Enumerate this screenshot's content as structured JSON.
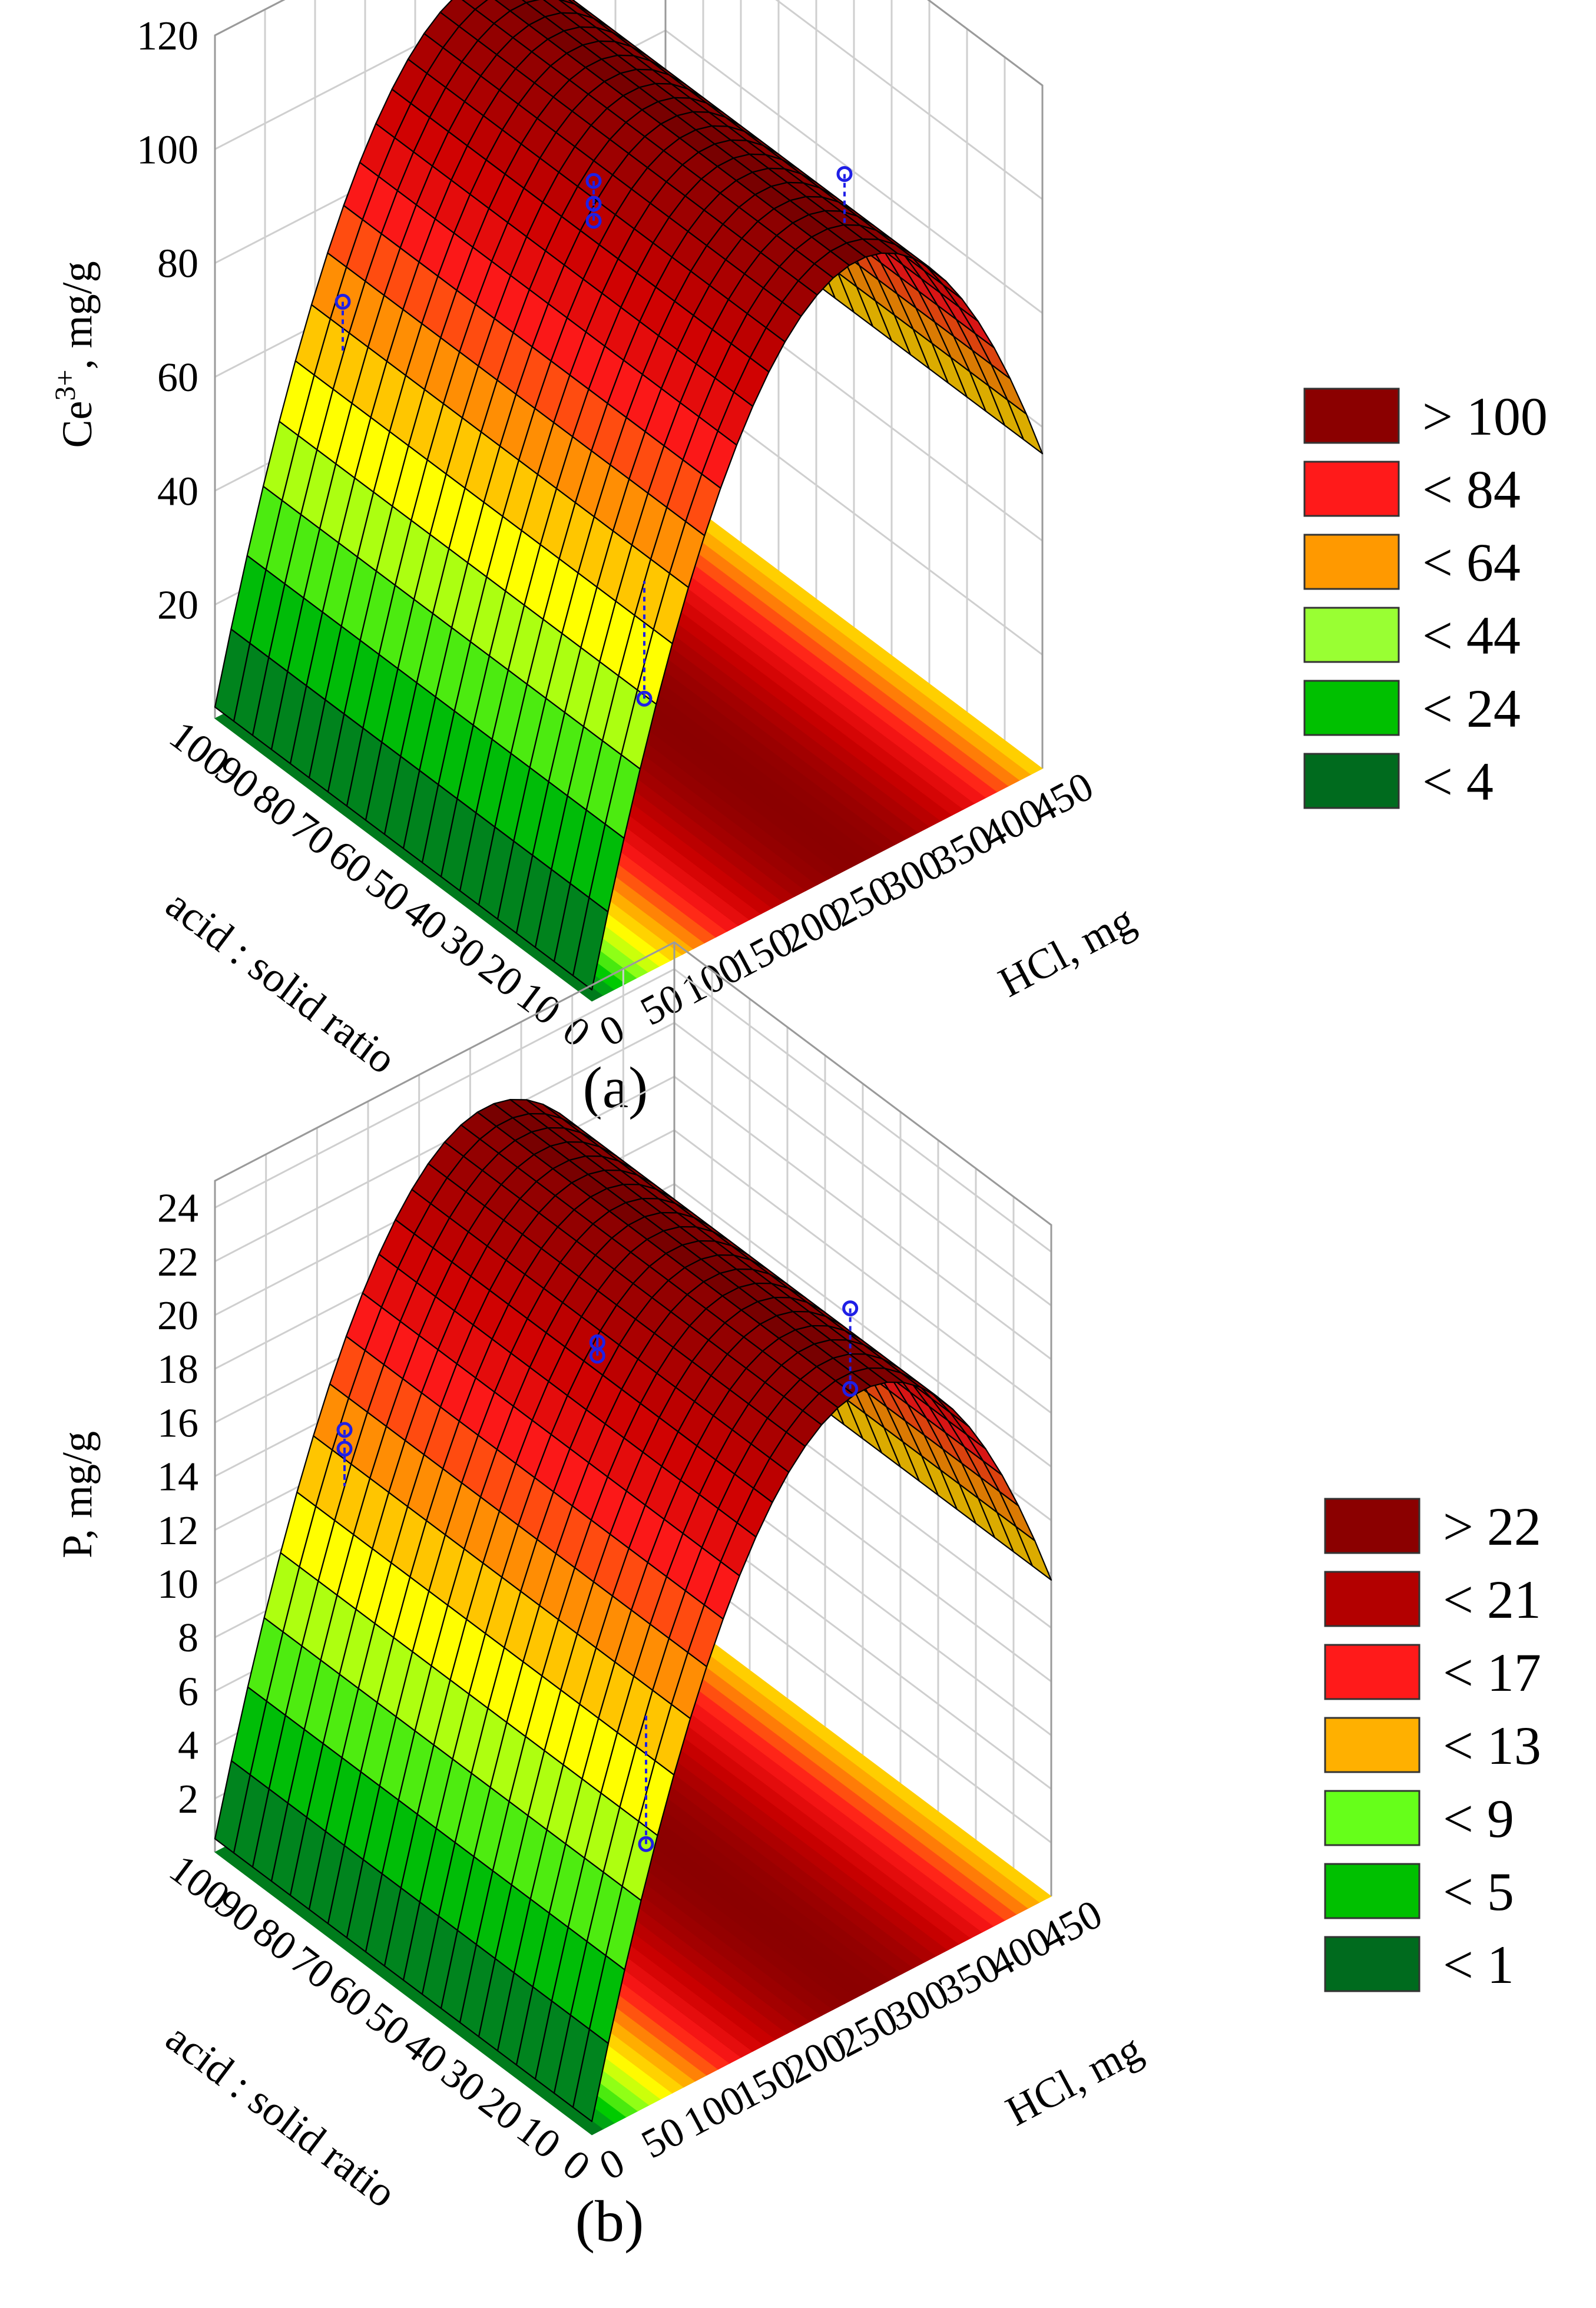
{
  "figure": {
    "panels": [
      "a",
      "b"
    ]
  },
  "chart_data": [
    {
      "type": "surface",
      "caption": "(a)",
      "xlabel": "acid : solid ratio",
      "ylabel": "HCl, mg",
      "zlabel_main": "Ce",
      "zlabel_sup": "3+",
      "zlabel_unit": ", mg/g",
      "x_ticks": [
        "100",
        "90",
        "80",
        "70",
        "60",
        "50",
        "40",
        "30",
        "20",
        "10",
        "0"
      ],
      "y_ticks": [
        "0",
        "50",
        "100",
        "150",
        "200",
        "250",
        "300",
        "350",
        "400",
        "450"
      ],
      "z_ticks": [
        "20",
        "40",
        "60",
        "80",
        "100",
        "120"
      ],
      "x_range": [
        0,
        100
      ],
      "y_range": [
        0,
        450
      ],
      "z_range": [
        0,
        120
      ],
      "surface_model": "z = zmax - k*(y - ypeak)^2 (peak along HCl axis, flat along acid:solid ratio)",
      "z_peak": 106,
      "y_peak": 265,
      "z_at_y0": 2,
      "legend": [
        {
          "label": "> 100",
          "color": "#8b0000"
        },
        {
          "label": "< 84",
          "color": "#ff1a1a"
        },
        {
          "label": "< 64",
          "color": "#ff9900"
        },
        {
          "label": "< 44",
          "color": "#99ff33"
        },
        {
          "label": "< 24",
          "color": "#00c000"
        },
        {
          "label": "< 4",
          "color": "#006b1e"
        }
      ],
      "observed_points": [
        {
          "x": 90,
          "y": 90,
          "z": 70
        },
        {
          "x": 50,
          "y": 190,
          "z": 102
        },
        {
          "x": 50,
          "y": 190,
          "z": 98
        },
        {
          "x": 50,
          "y": 190,
          "z": 95
        },
        {
          "x": 10,
          "y": 290,
          "z": 114
        },
        {
          "x": 10,
          "y": 90,
          "z": 40
        }
      ]
    },
    {
      "type": "surface",
      "caption": "(b)",
      "xlabel": "acid : solid ratio",
      "ylabel": "HCl, mg",
      "zlabel_main": "P",
      "zlabel_sup": "",
      "zlabel_unit": ", mg/g",
      "x_ticks": [
        "100",
        "90",
        "80",
        "70",
        "60",
        "50",
        "40",
        "30",
        "20",
        "10",
        "0"
      ],
      "y_ticks": [
        "0",
        "50",
        "100",
        "150",
        "200",
        "250",
        "300",
        "350",
        "400",
        "450"
      ],
      "z_ticks": [
        "2",
        "4",
        "6",
        "8",
        "10",
        "12",
        "14",
        "16",
        "18",
        "20",
        "22",
        "24"
      ],
      "x_range": [
        0,
        100
      ],
      "y_range": [
        0,
        450
      ],
      "z_range": [
        0,
        25
      ],
      "surface_model": "z = zmax - k*(y - ypeak)^2 (peak along HCl axis, flat along acid:solid ratio)",
      "z_peak": 22.5,
      "y_peak": 265,
      "z_at_y0": 0.5,
      "legend": [
        {
          "label": "> 22",
          "color": "#8b0000"
        },
        {
          "label": "< 21",
          "color": "#b30000"
        },
        {
          "label": "< 17",
          "color": "#ff1a1a"
        },
        {
          "label": "< 13",
          "color": "#ffb000"
        },
        {
          "label": "< 9",
          "color": "#66ff1a"
        },
        {
          "label": "< 5",
          "color": "#00c000"
        },
        {
          "label": "< 1",
          "color": "#006b1e"
        }
      ],
      "observed_points": [
        {
          "x": 90,
          "y": 90,
          "z": 15
        },
        {
          "x": 90,
          "y": 90,
          "z": 14.3
        },
        {
          "x": 50,
          "y": 190,
          "z": 20.5
        },
        {
          "x": 50,
          "y": 190,
          "z": 20
        },
        {
          "x": 10,
          "y": 290,
          "z": 24
        },
        {
          "x": 10,
          "y": 290,
          "z": 21
        },
        {
          "x": 10,
          "y": 90,
          "z": 8
        }
      ]
    }
  ]
}
